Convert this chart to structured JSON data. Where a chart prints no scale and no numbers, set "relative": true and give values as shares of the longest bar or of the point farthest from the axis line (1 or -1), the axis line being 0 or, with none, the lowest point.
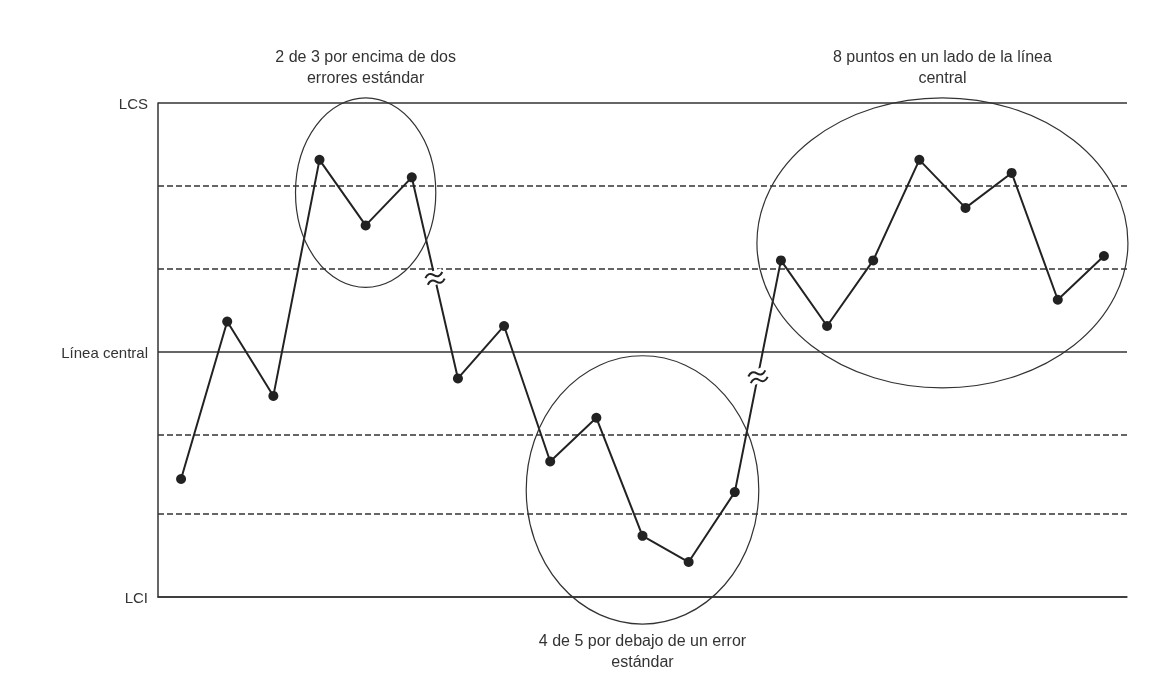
{
  "chart_data": {
    "type": "line",
    "relative": true,
    "categories": [
      null,
      null,
      null,
      null,
      null,
      null,
      null,
      null,
      null,
      null,
      null,
      null,
      null,
      null,
      null,
      null,
      null,
      null,
      null,
      null,
      null
    ],
    "values": [
      0.27,
      0.63,
      0.46,
      1,
      0.85,
      0.96,
      0.5,
      0.62,
      0.31,
      0.41,
      0.14,
      0.08,
      0.24,
      0.77,
      0.62,
      0.77,
      1,
      0.89,
      0.97,
      0.68,
      0.78
    ],
    "color": "#222222",
    "marker": "circle",
    "line_style": "solid",
    "ref_lines": [
      {
        "axis": "y",
        "value": 1.13,
        "label": "LCS",
        "color": "#333333",
        "line_style": "solid"
      },
      {
        "axis": "y",
        "value": 0.94,
        "color": "#333333",
        "line_style": "dashed"
      },
      {
        "axis": "y",
        "value": 0.75,
        "color": "#333333",
        "line_style": "dashed"
      },
      {
        "axis": "y",
        "value": 0.56,
        "label": "Línea central",
        "color": "#333333",
        "line_style": "solid"
      },
      {
        "axis": "y",
        "value": 0.37,
        "color": "#333333",
        "line_style": "dashed"
      },
      {
        "axis": "y",
        "value": 0.19,
        "color": "#333333",
        "line_style": "dashed"
      },
      {
        "axis": "y",
        "value": 0,
        "label": "LCI",
        "color": "#333333",
        "line_style": "solid"
      }
    ],
    "annotations": [
      "2 de 3 por encima de dos errores estándar",
      "4 de 5 por debajo de un error estándar",
      "8 puntos en un lado de la línea central"
    ]
  }
}
